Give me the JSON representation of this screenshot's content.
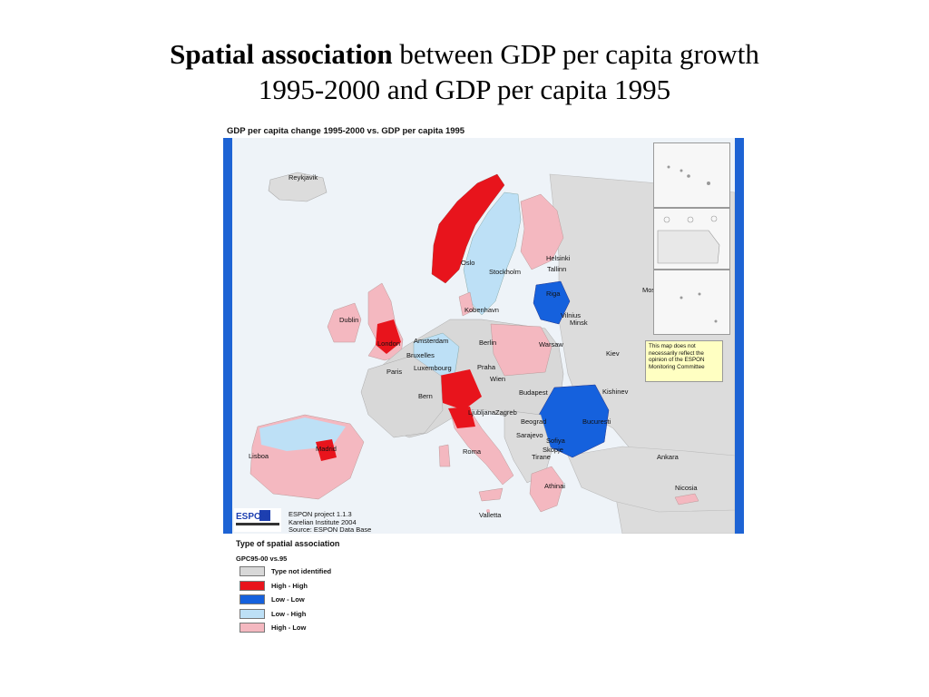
{
  "slide": {
    "title_bold": "Spatial association",
    "title_rest": " between GDP per capita growth",
    "title_line2": "1995-2000 and GDP per capita 1995"
  },
  "map": {
    "heading": "GDP per capita change 1995-2000 vs. GDP per capita 1995",
    "colors": {
      "type_not_identified": "#d8d8d8",
      "high_high": "#e8141c",
      "low_low": "#1561dd",
      "low_high": "#bde0f6",
      "high_low": "#f4b8c0",
      "sea": "#eef3f8",
      "non_espon": "#dcdcdc",
      "frame": "#1d63d4"
    },
    "cities": [
      "Reykjavik",
      "Oslo",
      "Stockholm",
      "Helsinki",
      "Tallinn",
      "Moskva",
      "Riga",
      "Vilnius",
      "Minsk",
      "Kobenhavn",
      "Dublin",
      "London",
      "Amsterdam",
      "Berlin",
      "Warsaw",
      "Kiev",
      "Bruxelles",
      "Praha",
      "Paris",
      "Luxembourg",
      "Wien",
      "Bern",
      "Budapest",
      "Kishinev",
      "Ljubljana",
      "Zagreb",
      "Beograd",
      "Bucuresti",
      "Sarajevo",
      "Madrid",
      "Lisboa",
      "Roma",
      "Skopje",
      "Sofiya",
      "Tirane",
      "Ankara",
      "Athinai",
      "Valletta",
      "Nicosia"
    ],
    "disclaimer": "This map does not necessarily reflect the opinion of the ESPON Monitoring Committee",
    "credits": [
      "ESPON project 1.1.3",
      "Karelian Institute 2004",
      "Source: ESPON Data Base"
    ],
    "logo_text": "ESPON"
  },
  "legend": {
    "title": "Type of spatial association",
    "subtitle": "GPC95-00 vs.95",
    "items": [
      {
        "label": "Type not identified",
        "color": "#d8d8d8"
      },
      {
        "label": "High - High",
        "color": "#e8141c"
      },
      {
        "label": "Low - Low",
        "color": "#1561dd"
      },
      {
        "label": "Low - High",
        "color": "#bde0f6"
      },
      {
        "label": "High - Low",
        "color": "#f4b8c0"
      }
    ]
  }
}
